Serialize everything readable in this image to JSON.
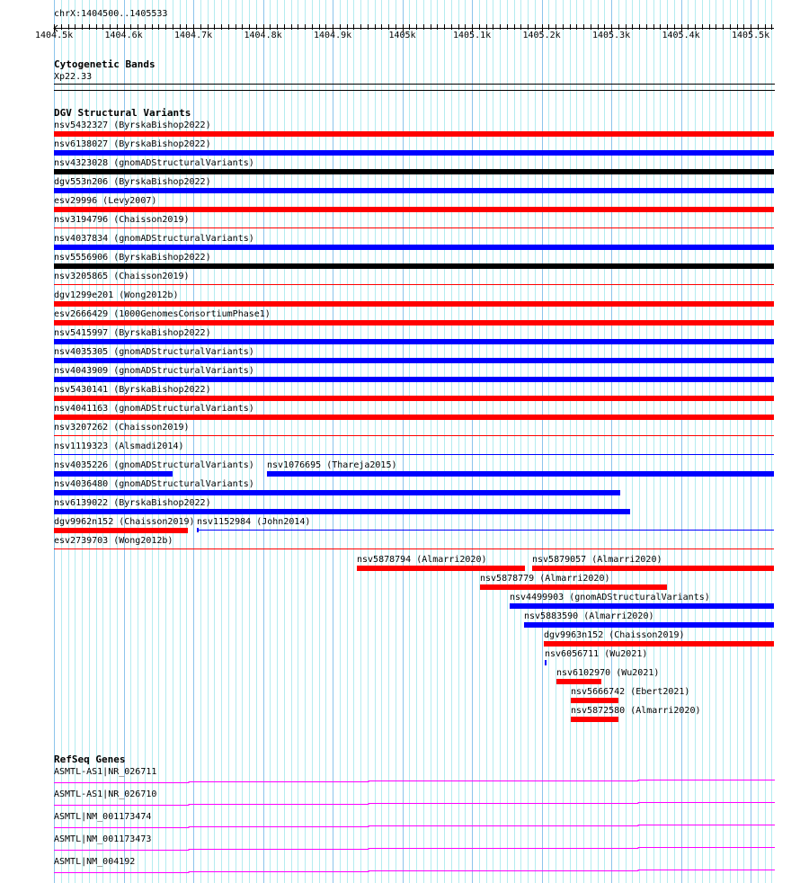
{
  "ruler": {
    "location": "chrX:1404500..1405533",
    "start": 1404500,
    "end": 1405533,
    "tick_labels": [
      "1404.5k",
      "1404.6k",
      "1404.7k",
      "1404.8k",
      "1404.9k",
      "1405k",
      "1405.1k",
      "1405.2k",
      "1405.3k",
      "1405.4k",
      "1405.5k"
    ]
  },
  "cytoband_track": {
    "title": "Cytogenetic Bands",
    "band": "Xp22.33"
  },
  "dgv_track": {
    "title": "DGV Structural Variants",
    "variants": [
      {
        "id": "nsv5432327",
        "label": "nsv5432327 (ByrskaBishop2022)",
        "start": 1404500,
        "end": 1405533,
        "color": "#ff0000",
        "style": "thick"
      },
      {
        "id": "nsv6138027",
        "label": "nsv6138027 (ByrskaBishop2022)",
        "start": 1404500,
        "end": 1405533,
        "color": "#0000ff",
        "style": "thick"
      },
      {
        "id": "nsv4323028",
        "label": "nsv4323028 (gnomADStructuralVariants)",
        "start": 1404500,
        "end": 1405533,
        "color": "#000000",
        "style": "thick"
      },
      {
        "id": "dgv553n206",
        "label": "dgv553n206 (ByrskaBishop2022)",
        "start": 1404500,
        "end": 1405533,
        "color": "#0000ff",
        "style": "thick"
      },
      {
        "id": "esv29996",
        "label": "esv29996 (Levy2007)",
        "start": 1404500,
        "end": 1405533,
        "color": "#ff0000",
        "style": "thick"
      },
      {
        "id": "nsv3194796",
        "label": "nsv3194796 (Chaisson2019)",
        "start": 1404500,
        "end": 1405533,
        "color": "#ff0000",
        "style": "thin"
      },
      {
        "id": "nsv4037834",
        "label": "nsv4037834 (gnomADStructuralVariants)",
        "start": 1404500,
        "end": 1405533,
        "color": "#0000ff",
        "style": "thick"
      },
      {
        "id": "nsv5556906",
        "label": "nsv5556906 (ByrskaBishop2022)",
        "start": 1404500,
        "end": 1405533,
        "color": "#000000",
        "style": "thick"
      },
      {
        "id": "nsv3205865",
        "label": "nsv3205865 (Chaisson2019)",
        "start": 1404500,
        "end": 1405533,
        "color": "#ff0000",
        "style": "thin"
      },
      {
        "id": "dgv1299e201",
        "label": "dgv1299e201 (Wong2012b)",
        "start": 1404500,
        "end": 1405533,
        "color": "#ff0000",
        "style": "thick"
      },
      {
        "id": "esv2666429",
        "label": "esv2666429 (1000GenomesConsortiumPhase1)",
        "start": 1404500,
        "end": 1405533,
        "color": "#ff0000",
        "style": "thick"
      },
      {
        "id": "nsv5415997",
        "label": "nsv5415997 (ByrskaBishop2022)",
        "start": 1404500,
        "end": 1405533,
        "color": "#0000ff",
        "style": "thick"
      },
      {
        "id": "nsv4035305",
        "label": "nsv4035305 (gnomADStructuralVariants)",
        "start": 1404500,
        "end": 1405533,
        "color": "#0000ff",
        "style": "thick"
      },
      {
        "id": "nsv4043909",
        "label": "nsv4043909 (gnomADStructuralVariants)",
        "start": 1404500,
        "end": 1405533,
        "color": "#0000ff",
        "style": "thick"
      },
      {
        "id": "nsv5430141",
        "label": "nsv5430141 (ByrskaBishop2022)",
        "start": 1404500,
        "end": 1405533,
        "color": "#ff0000",
        "style": "thick"
      },
      {
        "id": "nsv4041163",
        "label": "nsv4041163 (gnomADStructuralVariants)",
        "start": 1404500,
        "end": 1405533,
        "color": "#ff0000",
        "style": "thick"
      },
      {
        "id": "nsv3207262",
        "label": "nsv3207262 (Chaisson2019)",
        "start": 1404500,
        "end": 1405533,
        "color": "#ff0000",
        "style": "thin"
      },
      {
        "id": "nsv1119323",
        "label": "nsv1119323 (Alsmadi2014)",
        "start": 1404500,
        "end": 1405533,
        "color": "#0000ff",
        "style": "thin"
      },
      {
        "id": "nsv4035226",
        "label": "nsv4035226 (gnomADStructuralVariants)",
        "start": 1404500,
        "end": 1404670,
        "color": "#0000ff",
        "style": "thick"
      },
      {
        "id": "nsv1076695",
        "label": "nsv1076695 (Thareja2015)",
        "start": 1404806,
        "end": 1405533,
        "color": "#0000ff",
        "style": "thick"
      },
      {
        "id": "nsv4036480",
        "label": "nsv4036480 (gnomADStructuralVariants)",
        "start": 1404500,
        "end": 1405313,
        "color": "#0000ff",
        "style": "thick"
      },
      {
        "id": "nsv6139022",
        "label": "nsv6139022 (ByrskaBishop2022)",
        "start": 1404500,
        "end": 1405327,
        "color": "#0000ff",
        "style": "thick"
      },
      {
        "id": "dgv9962n152",
        "label": "dgv9962n152 (Chaisson2019)",
        "start": 1404500,
        "end": 1404692,
        "color": "#ff0000",
        "style": "thick"
      },
      {
        "id": "nsv1152984",
        "label": "nsv1152984 (John2014)",
        "start": 1404705,
        "end": 1405533,
        "color": "#0000ff",
        "style": "thin-tick"
      },
      {
        "id": "esv2739703",
        "label": "esv2739703 (Wong2012b)",
        "start": 1404500,
        "end": 1405533,
        "color": "#ff0000",
        "style": "thin"
      },
      {
        "id": "nsv5878794",
        "label": "nsv5878794 (Almarri2020)",
        "start": 1404935,
        "end": 1405176,
        "color": "#ff0000",
        "style": "thick"
      },
      {
        "id": "nsv5879057",
        "label": "nsv5879057 (Almarri2020)",
        "start": 1405186,
        "end": 1405533,
        "color": "#ff0000",
        "style": "thick"
      },
      {
        "id": "nsv5878779",
        "label": "nsv5878779 (Almarri2020)",
        "start": 1405112,
        "end": 1405380,
        "color": "#ff0000",
        "style": "thick"
      },
      {
        "id": "nsv4499903",
        "label": "nsv4499903 (gnomADStructuralVariants)",
        "start": 1405154,
        "end": 1405533,
        "color": "#0000ff",
        "style": "thick"
      },
      {
        "id": "nsv5883590",
        "label": "nsv5883590 (Almarri2020)",
        "start": 1405175,
        "end": 1405533,
        "color": "#0000ff",
        "style": "thick"
      },
      {
        "id": "dgv9963n152",
        "label": "dgv9963n152 (Chaisson2019)",
        "start": 1405203,
        "end": 1405533,
        "color": "#ff0000",
        "style": "thick"
      },
      {
        "id": "nsv6056711",
        "label": "nsv6056711 (Wu2021)",
        "start": 1405205,
        "end": 1405207,
        "color": "#0000ff",
        "style": "thick"
      },
      {
        "id": "nsv6102970",
        "label": "nsv6102970 (Wu2021)",
        "start": 1405221,
        "end": 1405286,
        "color": "#ff0000",
        "style": "thick"
      },
      {
        "id": "nsv5666742",
        "label": "nsv5666742 (Ebert2021)",
        "start": 1405242,
        "end": 1405310,
        "color": "#ff0000",
        "style": "thick"
      },
      {
        "id": "nsv5872580",
        "label": "nsv5872580 (Almarri2020)",
        "start": 1405242,
        "end": 1405310,
        "color": "#ff0000",
        "style": "thick"
      }
    ]
  },
  "refseq_track": {
    "title": "RefSeq Genes",
    "color": "#ff00ff",
    "genes": [
      {
        "label": "ASMTL-AS1|NR_026711"
      },
      {
        "label": "ASMTL-AS1|NR_026710"
      },
      {
        "label": "ASMTL|NM_001173474"
      },
      {
        "label": "ASMTL|NM_001173473"
      },
      {
        "label": "ASMTL|NM_004192"
      }
    ]
  }
}
